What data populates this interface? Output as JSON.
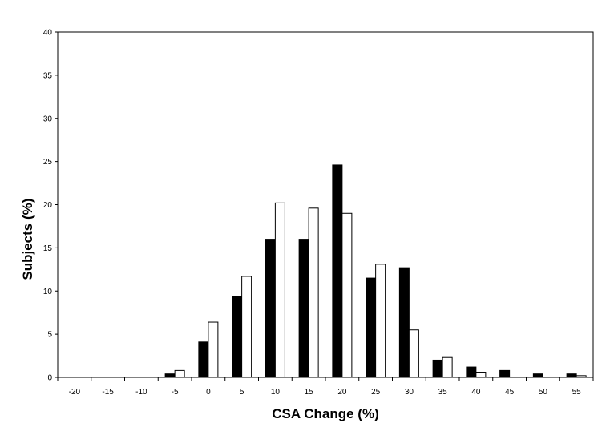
{
  "chart_data": {
    "type": "bar",
    "title": "",
    "xlabel": "CSA Change (%)",
    "ylabel": "Subjects (%)",
    "ylim": [
      0,
      40
    ],
    "yticks": [
      0,
      5,
      10,
      15,
      20,
      25,
      30,
      35,
      40
    ],
    "grid": false,
    "legend": "none",
    "categories": [
      "-20",
      "-15",
      "-10",
      "-5",
      "0",
      "5",
      "10",
      "15",
      "20",
      "25",
      "30",
      "35",
      "40",
      "45",
      "50",
      "55"
    ],
    "series": [
      {
        "color": "#000000",
        "values": [
          0,
          0,
          0,
          0.4,
          4.1,
          9.4,
          16.0,
          16.0,
          24.6,
          11.5,
          12.7,
          2.0,
          1.2,
          0.8,
          0.4,
          0.4
        ]
      },
      {
        "color": "#ffffff",
        "values": [
          0,
          0,
          0,
          0.8,
          6.4,
          11.7,
          20.2,
          19.6,
          19.0,
          13.1,
          5.5,
          2.3,
          0.6,
          0,
          0,
          0.2
        ]
      }
    ]
  }
}
